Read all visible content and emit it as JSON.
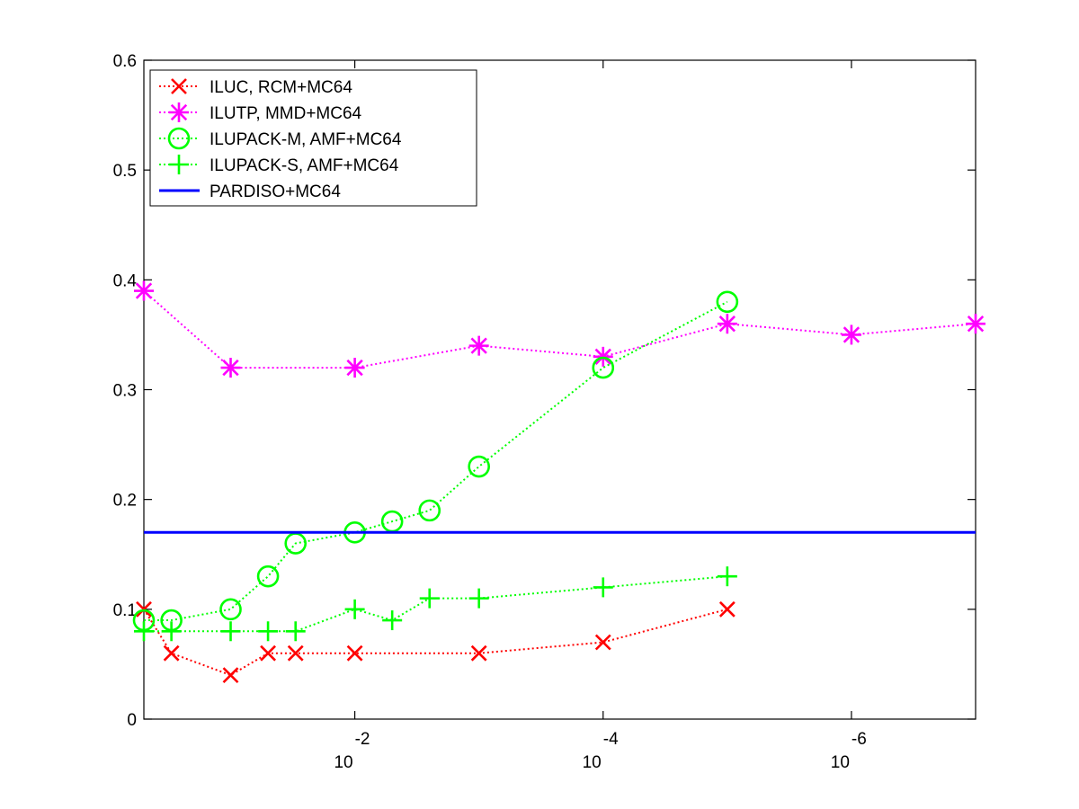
{
  "chart_data": {
    "type": "line",
    "title": "",
    "xlabel": "",
    "ylabel": "",
    "x_scale": "log",
    "x_direction": "decreasing",
    "xlim": [
      0.5,
      1e-07
    ],
    "ylim": [
      0,
      0.6
    ],
    "yticks": [
      "0",
      "0.1",
      "0.2",
      "0.3",
      "0.4",
      "0.5",
      "0.6"
    ],
    "xticks": [
      {
        "value": 0.01,
        "base": "10",
        "exp": "-2"
      },
      {
        "value": 0.0001,
        "base": "10",
        "exp": "-4"
      },
      {
        "value": 1e-06,
        "base": "10",
        "exp": "-6"
      }
    ],
    "grid": false,
    "legend_position": "top-left",
    "series": [
      {
        "name": "ILUC, RCM+MC64",
        "color": "#ff0000",
        "marker": "x",
        "line": "dotted",
        "x": [
          0.5,
          0.3,
          0.1,
          0.05,
          0.03,
          0.01,
          0.001,
          0.0001,
          1e-05
        ],
        "y": [
          0.1,
          0.06,
          0.04,
          0.06,
          0.06,
          0.06,
          0.06,
          0.07,
          0.1
        ]
      },
      {
        "name": "ILUTP, MMD+MC64",
        "color": "#ff00ff",
        "marker": "asterisk",
        "line": "dotted",
        "x": [
          0.5,
          0.1,
          0.01,
          0.001,
          0.0001,
          1e-05,
          1e-06,
          1e-07
        ],
        "y": [
          0.39,
          0.32,
          0.32,
          0.34,
          0.33,
          0.36,
          0.35,
          0.36
        ]
      },
      {
        "name": "ILUPACK-M, AMF+MC64",
        "color": "#00ff00",
        "marker": "circle",
        "line": "dotted",
        "x": [
          0.5,
          0.3,
          0.1,
          0.05,
          0.03,
          0.01,
          0.005,
          0.0025,
          0.001,
          0.0001,
          1e-05
        ],
        "y": [
          0.09,
          0.09,
          0.1,
          0.13,
          0.16,
          0.17,
          0.18,
          0.19,
          0.23,
          0.32,
          0.38
        ]
      },
      {
        "name": "ILUPACK-S, AMF+MC64",
        "color": "#00ff00",
        "marker": "plus",
        "line": "dotted",
        "x": [
          0.5,
          0.3,
          0.1,
          0.05,
          0.03,
          0.01,
          0.005,
          0.0025,
          0.001,
          0.0001,
          1e-05
        ],
        "y": [
          0.08,
          0.08,
          0.08,
          0.08,
          0.08,
          0.1,
          0.09,
          0.11,
          0.11,
          0.12,
          0.13
        ]
      },
      {
        "name": "PARDISO+MC64",
        "color": "#0000ff",
        "marker": "none",
        "line": "solid",
        "x": [
          0.5,
          1e-07
        ],
        "y": [
          0.17,
          0.17
        ]
      }
    ]
  }
}
